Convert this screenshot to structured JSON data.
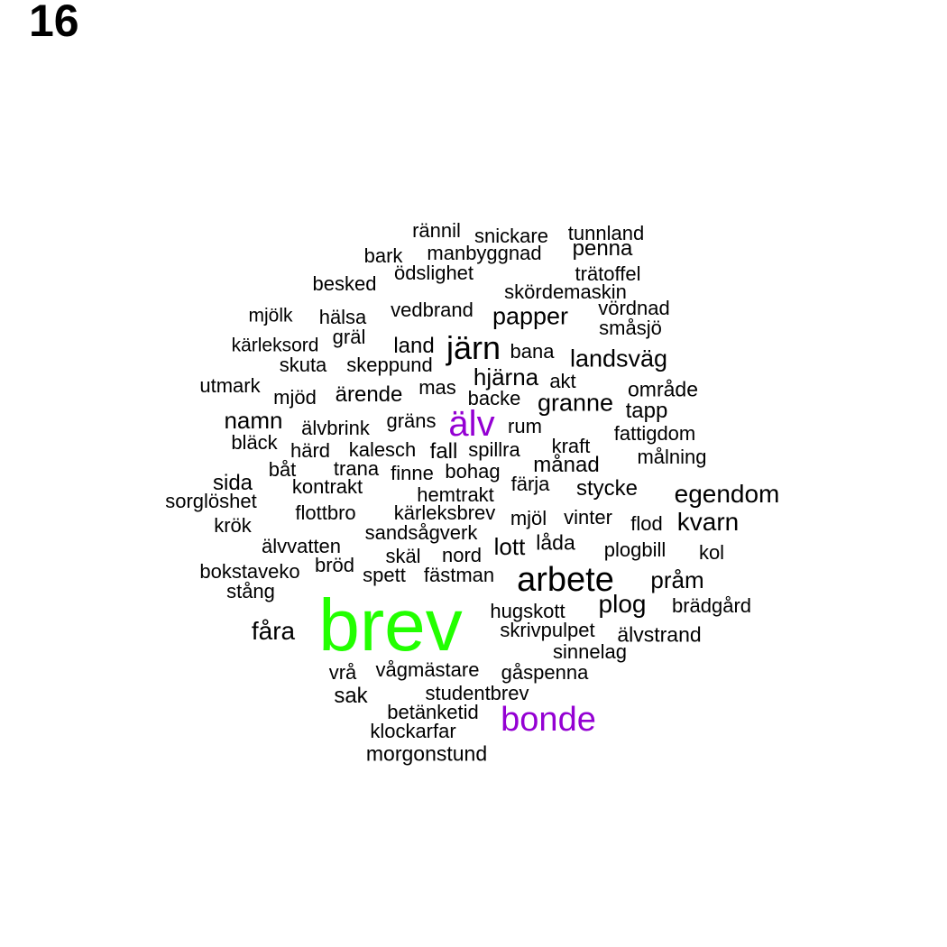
{
  "panel_label": "16",
  "colors": {
    "default": "#000000",
    "accent_green": "#22ff00",
    "accent_purple": "#9400d3"
  },
  "words": [
    {
      "text": "brev",
      "color": "#22ff00",
      "size": 82
    },
    {
      "text": "älv",
      "color": "#9400d3",
      "size": 40
    },
    {
      "text": "bonde",
      "color": "#9400d3",
      "size": 38
    },
    {
      "text": "arbete",
      "size": 38
    },
    {
      "text": "järn",
      "size": 36
    },
    {
      "text": "egendom",
      "size": 28
    },
    {
      "text": "kvarn",
      "size": 28
    },
    {
      "text": "plog",
      "size": 28
    },
    {
      "text": "fåra",
      "size": 28
    },
    {
      "text": "landsväg",
      "size": 27
    },
    {
      "text": "papper",
      "size": 27
    },
    {
      "text": "granne",
      "size": 27
    },
    {
      "text": "namn",
      "size": 26
    },
    {
      "text": "hjärna",
      "size": 26
    },
    {
      "text": "pråm",
      "size": 26
    },
    {
      "text": "lott",
      "size": 26
    },
    {
      "text": "stycke",
      "size": 24
    },
    {
      "text": "sida",
      "size": 24
    },
    {
      "text": "månad",
      "size": 24
    },
    {
      "text": "sak",
      "size": 24
    },
    {
      "text": "land",
      "size": 24
    },
    {
      "text": "penna",
      "size": 24
    },
    {
      "text": "fall",
      "size": 24
    },
    {
      "text": "tapp",
      "size": 24
    },
    {
      "text": "ärende",
      "size": 24
    },
    {
      "text": "område",
      "size": 23
    },
    {
      "text": "låda",
      "size": 23
    },
    {
      "text": "älvstrand",
      "size": 23
    },
    {
      "text": "skäl",
      "size": 22
    },
    {
      "text": "morgonstund",
      "size": 23
    },
    {
      "text": "kontrakt",
      "size": 22
    },
    {
      "text": "målning",
      "size": 22
    },
    {
      "text": "hälsa",
      "size": 22
    },
    {
      "text": "hugskott",
      "size": 22
    },
    {
      "text": "nord",
      "size": 22
    },
    {
      "text": "fästman",
      "size": 22
    },
    {
      "text": "klockarfar",
      "size": 22
    },
    {
      "text": "vinter",
      "size": 22
    },
    {
      "text": "kraft",
      "size": 22
    },
    {
      "text": "mjöd",
      "size": 22
    },
    {
      "text": "utmark",
      "size": 22
    },
    {
      "text": "bark",
      "size": 22
    },
    {
      "text": "vedbrand",
      "size": 22
    },
    {
      "text": "manbyggnad",
      "size": 22
    },
    {
      "text": "rännil",
      "size": 22
    },
    {
      "text": "snickare",
      "size": 22
    },
    {
      "text": "tunnland",
      "size": 22
    },
    {
      "text": "trätoffel",
      "size": 22
    },
    {
      "text": "ödslighet",
      "size": 22
    },
    {
      "text": "besked",
      "size": 22
    },
    {
      "text": "skördemaskin",
      "size": 22
    },
    {
      "text": "vördnad",
      "size": 22
    },
    {
      "text": "småsjö",
      "size": 22
    },
    {
      "text": "mjölk",
      "size": 21
    },
    {
      "text": "kärleksord",
      "size": 21
    },
    {
      "text": "gräl",
      "size": 22
    },
    {
      "text": "bana",
      "size": 22
    },
    {
      "text": "skuta",
      "size": 22
    },
    {
      "text": "skeppund",
      "size": 22
    },
    {
      "text": "mas",
      "size": 22
    },
    {
      "text": "akt",
      "size": 22
    },
    {
      "text": "backe",
      "size": 22
    },
    {
      "text": "älvbrink",
      "size": 22
    },
    {
      "text": "gräns",
      "size": 22
    },
    {
      "text": "rum",
      "size": 22
    },
    {
      "text": "fattigdom",
      "size": 22
    },
    {
      "text": "bläck",
      "size": 22
    },
    {
      "text": "härd",
      "size": 22
    },
    {
      "text": "kalesch",
      "size": 22
    },
    {
      "text": "spillra",
      "size": 22
    },
    {
      "text": "båt",
      "size": 22
    },
    {
      "text": "trana",
      "size": 22
    },
    {
      "text": "finne",
      "size": 22
    },
    {
      "text": "bohag",
      "size": 22
    },
    {
      "text": "färja",
      "size": 22
    },
    {
      "text": "sorglöshet",
      "size": 22
    },
    {
      "text": "hemtrakt",
      "size": 22
    },
    {
      "text": "krök",
      "size": 22
    },
    {
      "text": "flottbro",
      "size": 22
    },
    {
      "text": "kärleksbrev",
      "size": 22
    },
    {
      "text": "mjöl",
      "size": 22
    },
    {
      "text": "flod",
      "size": 22
    },
    {
      "text": "sandsågverk",
      "size": 22
    },
    {
      "text": "älvvatten",
      "size": 22
    },
    {
      "text": "plogbill",
      "size": 22
    },
    {
      "text": "kol",
      "size": 22
    },
    {
      "text": "bokstaveko",
      "size": 22
    },
    {
      "text": "bröd",
      "size": 22
    },
    {
      "text": "spett",
      "size": 22
    },
    {
      "text": "stång",
      "size": 22
    },
    {
      "text": "brädgård",
      "size": 22
    },
    {
      "text": "skrivpulpet",
      "size": 22
    },
    {
      "text": "sinnelag",
      "size": 22
    },
    {
      "text": "vrå",
      "size": 22
    },
    {
      "text": "vågmästare",
      "size": 22
    },
    {
      "text": "gåspenna",
      "size": 22
    },
    {
      "text": "studentbrev",
      "size": 22
    },
    {
      "text": "betänketid",
      "size": 22
    }
  ]
}
